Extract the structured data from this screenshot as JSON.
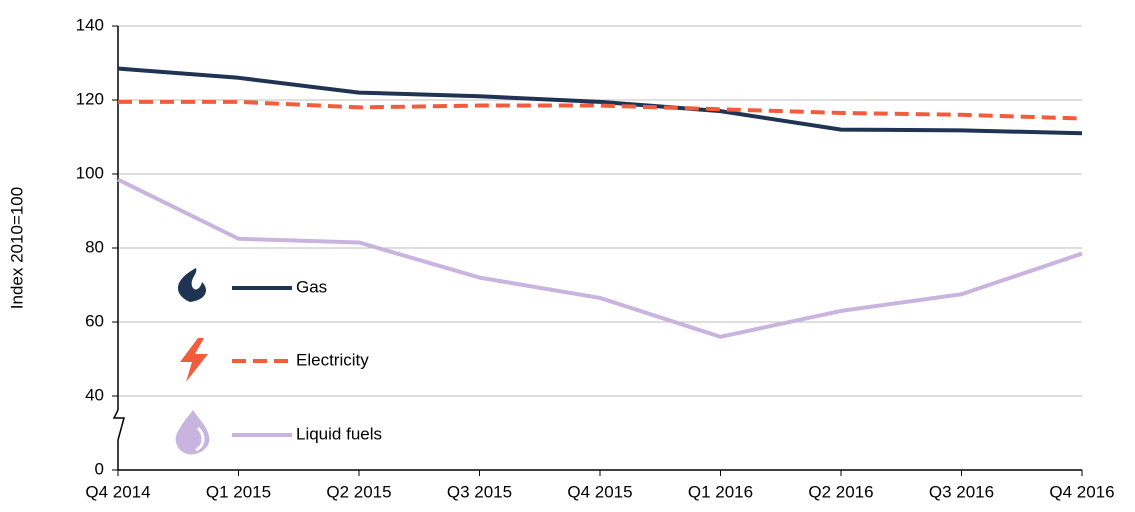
{
  "chart_data": {
    "type": "line",
    "y_label": "Index 2010=100",
    "categories": [
      "Q4 2014",
      "Q1 2015",
      "Q2 2015",
      "Q3 2015",
      "Q4 2015",
      "Q1 2016",
      "Q2 2016",
      "Q3 2016",
      "Q4 2016"
    ],
    "series": [
      {
        "name": "Gas",
        "color": "#1f3352",
        "dash": false,
        "values": [
          128.5,
          126,
          122,
          121,
          119.5,
          117,
          112,
          111.8,
          111
        ]
      },
      {
        "name": "Electricity",
        "color": "#f15d3c",
        "dash": true,
        "values": [
          119.5,
          119.5,
          118,
          118.5,
          118.5,
          117.5,
          116.5,
          116,
          115
        ]
      },
      {
        "name": "Liquid fuels",
        "color": "#c9b4e0",
        "dash": false,
        "values": [
          98.5,
          82.5,
          81.5,
          72,
          66.5,
          56,
          63,
          67.5,
          78.5
        ]
      }
    ],
    "ylim": [
      0,
      140
    ],
    "yticks": [
      0,
      40,
      60,
      80,
      100,
      120,
      140
    ],
    "axis_break": true,
    "grid": true,
    "legend": "left"
  }
}
